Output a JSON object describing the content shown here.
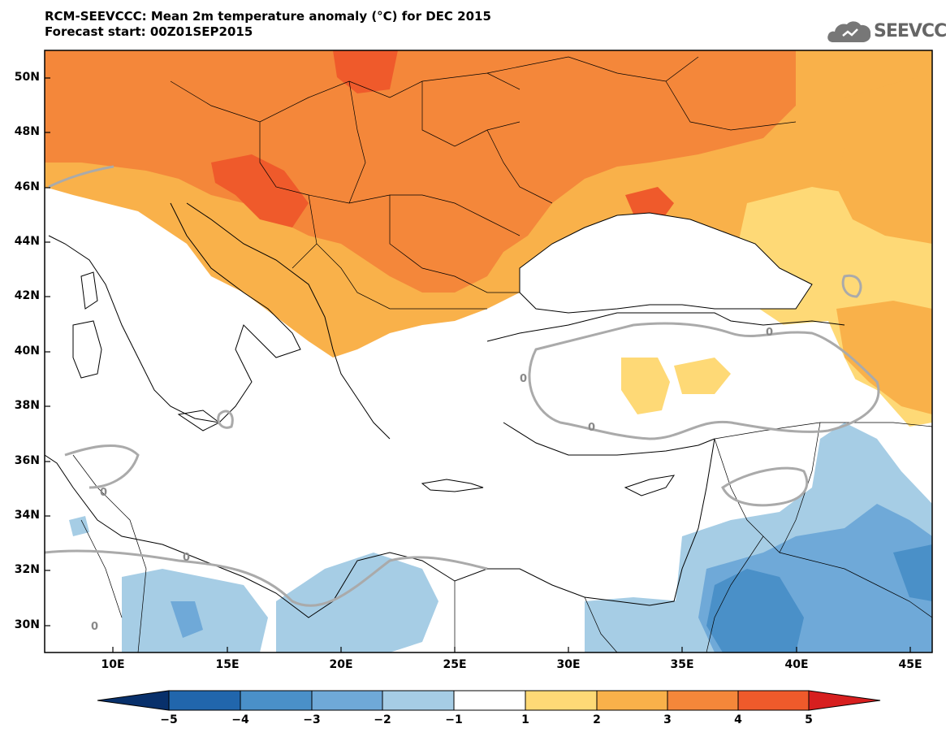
{
  "title": {
    "line1": "RCM-SEEVCCC: Mean 2m temperature anomaly (°C) for DEC 2015",
    "line2": "Forecast start: 00Z01SEP2015"
  },
  "logo": {
    "text": "SEEVCCC",
    "icon": "cloud-logo-icon"
  },
  "map": {
    "projection": "lat-lon",
    "lon_range": [
      7,
      46
    ],
    "lat_range": [
      29,
      51
    ],
    "contour_label": "0",
    "latitude_labels": [
      "50N",
      "48N",
      "46N",
      "44N",
      "42N",
      "40N",
      "38N",
      "36N",
      "34N",
      "32N",
      "30N"
    ],
    "longitude_labels": [
      "10E",
      "15E",
      "20E",
      "25E",
      "30E",
      "35E",
      "40E",
      "45E"
    ]
  },
  "colorbar": {
    "labels": [
      "−5",
      "−4",
      "−3",
      "−2",
      "−1",
      "1",
      "2",
      "3",
      "4",
      "5"
    ],
    "colors": [
      "#08306b",
      "#2166ac",
      "#4a90c8",
      "#6fa9d8",
      "#a6cde5",
      "#ffffff",
      "#fed976",
      "#f9b14a",
      "#f4873a",
      "#ef5a2b",
      "#d71f1f"
    ]
  }
}
